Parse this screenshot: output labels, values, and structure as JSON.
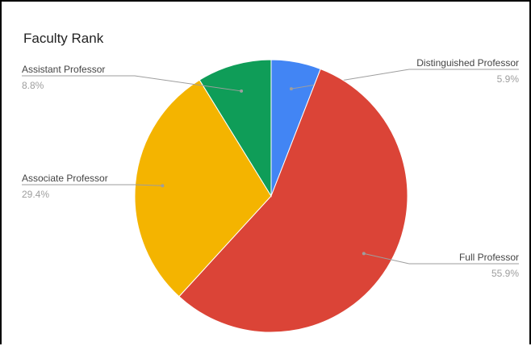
{
  "chart_data": {
    "type": "pie",
    "title": "Faculty Rank",
    "slices": [
      {
        "label": "Distinguished Professor",
        "value": 5.9,
        "percent_label": "5.9%",
        "color": "#4285F4"
      },
      {
        "label": "Full Professor",
        "value": 55.9,
        "percent_label": "55.9%",
        "color": "#DB4437"
      },
      {
        "label": "Associate Professor",
        "value": 29.4,
        "percent_label": "29.4%",
        "color": "#F4B400"
      },
      {
        "label": "Assistant Professor",
        "value": 8.8,
        "percent_label": "8.8%",
        "color": "#0F9D58"
      }
    ],
    "legend": "none"
  }
}
